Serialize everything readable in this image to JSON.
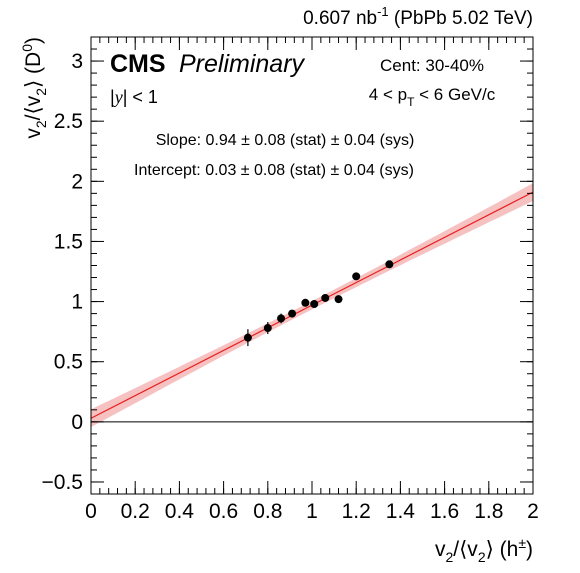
{
  "header": {
    "lumi": "0.607",
    "lumi_unit": "nb",
    "lumi_exp": "-1",
    "system": "(PbPb 5.02 TeV)"
  },
  "labels": {
    "cms": "CMS",
    "preliminary": "Preliminary",
    "rapidity_y": "y",
    "rapidity_cut": "< 1",
    "centrality": "Cent: 30-40%",
    "pt_low": "4 < p",
    "pt_sub": "T",
    "pt_high": "< 6 GeV/c",
    "slope_text": "Slope: 0.94 ± 0.08 (stat) ± 0.04 (sys)",
    "intercept_text": "Intercept: 0.03 ± 0.08 (stat) ± 0.04 (sys)"
  },
  "axes": {
    "x_title": {
      "v": "v",
      "sub": "2",
      "mid": "/⟨v",
      "sub2": "2",
      "end": "⟩ (h",
      "sup": "±",
      "close": ")"
    },
    "y_title": {
      "v": "v",
      "sub": "2",
      "mid": "/⟨v",
      "sub2": "2",
      "end": "⟩ (D",
      "sup": "0",
      "close": ")"
    }
  },
  "colors": {
    "fit_line": "#e8201e",
    "fit_band": "#f4b6b6",
    "points": "#000000",
    "axes": "#000000"
  },
  "chart_data": {
    "type": "scatter",
    "xlim": [
      0,
      2
    ],
    "ylim": [
      -0.6,
      3.2
    ],
    "x_ticks": [
      0,
      0.2,
      0.4,
      0.6,
      0.8,
      1,
      1.2,
      1.4,
      1.6,
      1.8,
      2
    ],
    "x_tick_labels": [
      "0",
      "0.2",
      "0.4",
      "0.6",
      "0.8",
      "1",
      "1.2",
      "1.4",
      "1.6",
      "1.8",
      "2"
    ],
    "y_ticks": [
      -0.5,
      0,
      0.5,
      1,
      1.5,
      2,
      2.5,
      3
    ],
    "y_tick_labels": [
      "−0.5",
      "0",
      "0.5",
      "1",
      "1.5",
      "2",
      "2.5",
      "3"
    ],
    "reference_line_y": 0,
    "fit": {
      "slope": 0.94,
      "intercept": 0.03,
      "slope_err": 0.08,
      "intercept_err": 0.08
    },
    "points": [
      {
        "x": 0.71,
        "y": 0.7,
        "yerr": 0.07
      },
      {
        "x": 0.8,
        "y": 0.78,
        "yerr": 0.05
      },
      {
        "x": 0.86,
        "y": 0.86,
        "yerr": 0.04
      },
      {
        "x": 0.91,
        "y": 0.9,
        "yerr": 0.03
      },
      {
        "x": 0.97,
        "y": 0.99,
        "yerr": 0.03
      },
      {
        "x": 1.01,
        "y": 0.98,
        "yerr": 0.03
      },
      {
        "x": 1.06,
        "y": 1.03,
        "yerr": 0.03
      },
      {
        "x": 1.12,
        "y": 1.02,
        "yerr": 0.03
      },
      {
        "x": 1.2,
        "y": 1.21,
        "yerr": 0.03
      },
      {
        "x": 1.35,
        "y": 1.31,
        "yerr": 0.03
      }
    ],
    "grid": false,
    "legend": "none"
  }
}
